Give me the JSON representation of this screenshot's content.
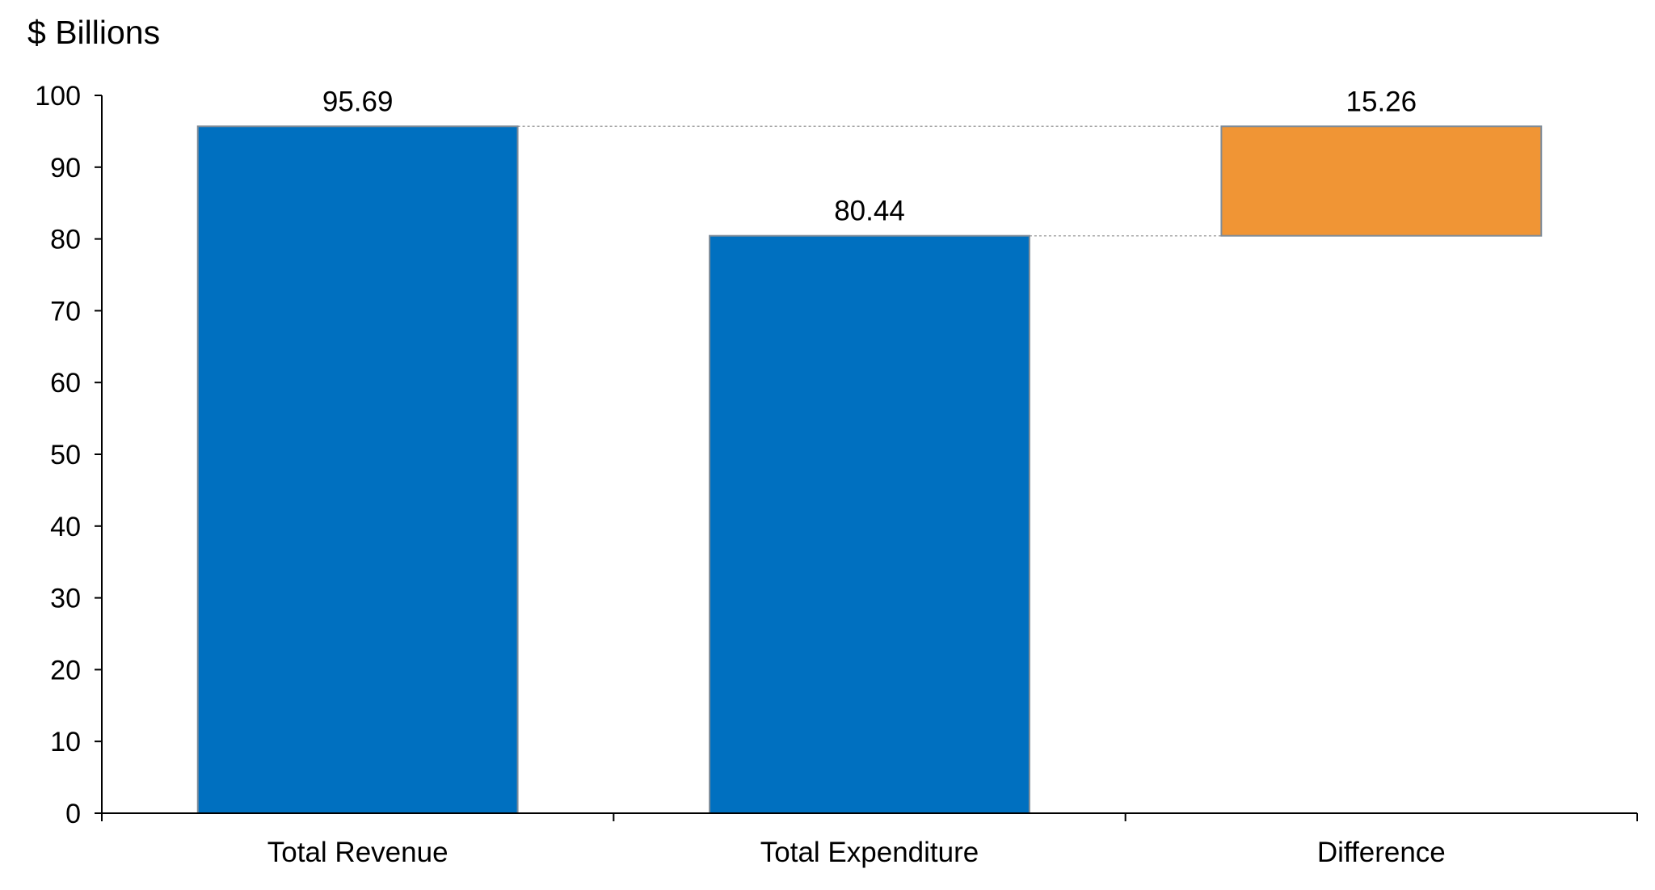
{
  "chart_data": {
    "type": "bar",
    "subtype": "waterfall",
    "title": "",
    "ylabel": "$ Billions",
    "xlabel": "",
    "ylim": [
      0,
      100
    ],
    "yticks": [
      0,
      10,
      20,
      30,
      40,
      50,
      60,
      70,
      80,
      90,
      100
    ],
    "grid": false,
    "legend": "none",
    "categories": [
      "Total Revenue",
      "Total Expenditure",
      "Difference"
    ],
    "bars": [
      {
        "category": "Total Revenue",
        "base": 0,
        "top": 95.69,
        "value": 95.69,
        "label": "95.69",
        "color": "#0070C0"
      },
      {
        "category": "Total Expenditure",
        "base": 0,
        "top": 80.44,
        "value": 80.44,
        "label": "80.44",
        "color": "#0070C0"
      },
      {
        "category": "Difference",
        "base": 80.44,
        "top": 95.69,
        "value": 15.26,
        "label": "15.26",
        "color": "#F09535"
      }
    ],
    "connectors": [
      {
        "from": "Total Revenue",
        "to": "Difference",
        "level": 95.69
      },
      {
        "from": "Total Expenditure",
        "to": "Difference",
        "level": 80.44
      }
    ]
  },
  "colors": {
    "primary_bar": "#0070C0",
    "difference_bar": "#F09535",
    "bar_border": "#7F8C99",
    "axis": "#000000",
    "connector": "#A6A6A6"
  }
}
